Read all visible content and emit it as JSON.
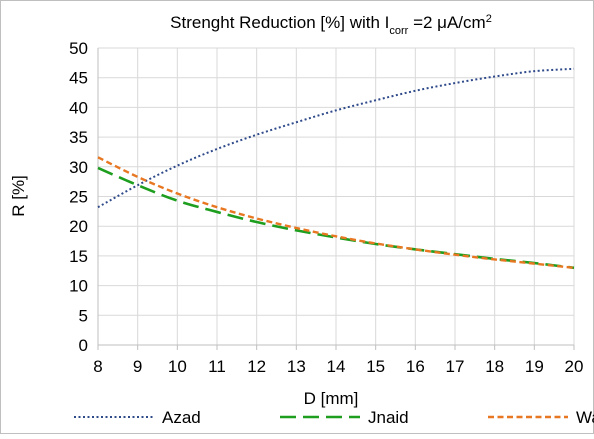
{
  "chart_data": {
    "type": "line",
    "title": {
      "prefix": "Strenght  Reduction [%] with I",
      "subscript": "corr",
      "middle": " =2 μA/cm",
      "superscript": "2"
    },
    "xlabel": "D [mm]",
    "ylabel": "R [%]",
    "xlim": [
      8,
      20
    ],
    "ylim": [
      0,
      50
    ],
    "x_ticks": [
      8,
      9,
      10,
      11,
      12,
      13,
      14,
      15,
      16,
      17,
      18,
      19,
      20
    ],
    "y_ticks": [
      0,
      5,
      10,
      15,
      20,
      25,
      30,
      35,
      40,
      45,
      50
    ],
    "grid": true,
    "legend_position": "bottom",
    "x": [
      8,
      9,
      10,
      11,
      12,
      13,
      14,
      15,
      16,
      17,
      18,
      19,
      20
    ],
    "series": [
      {
        "name": "Azad",
        "color": "#2f4a8a",
        "style": "dotted",
        "values": [
          23.2,
          26.9,
          30.2,
          33.0,
          35.4,
          37.5,
          39.5,
          41.2,
          42.8,
          44.1,
          45.2,
          46.1,
          46.5
        ]
      },
      {
        "name": "Jnaid",
        "color": "#1e9e1e",
        "style": "long-dash",
        "values": [
          29.8,
          26.9,
          24.3,
          22.4,
          20.7,
          19.3,
          18.1,
          17.0,
          16.1,
          15.3,
          14.5,
          13.8,
          13.0
        ]
      },
      {
        "name": "Wang",
        "color": "#e87722",
        "style": "short-dash",
        "values": [
          31.6,
          28.3,
          25.5,
          23.2,
          21.3,
          19.7,
          18.3,
          17.1,
          16.1,
          15.2,
          14.4,
          13.7,
          13.0
        ]
      }
    ]
  }
}
